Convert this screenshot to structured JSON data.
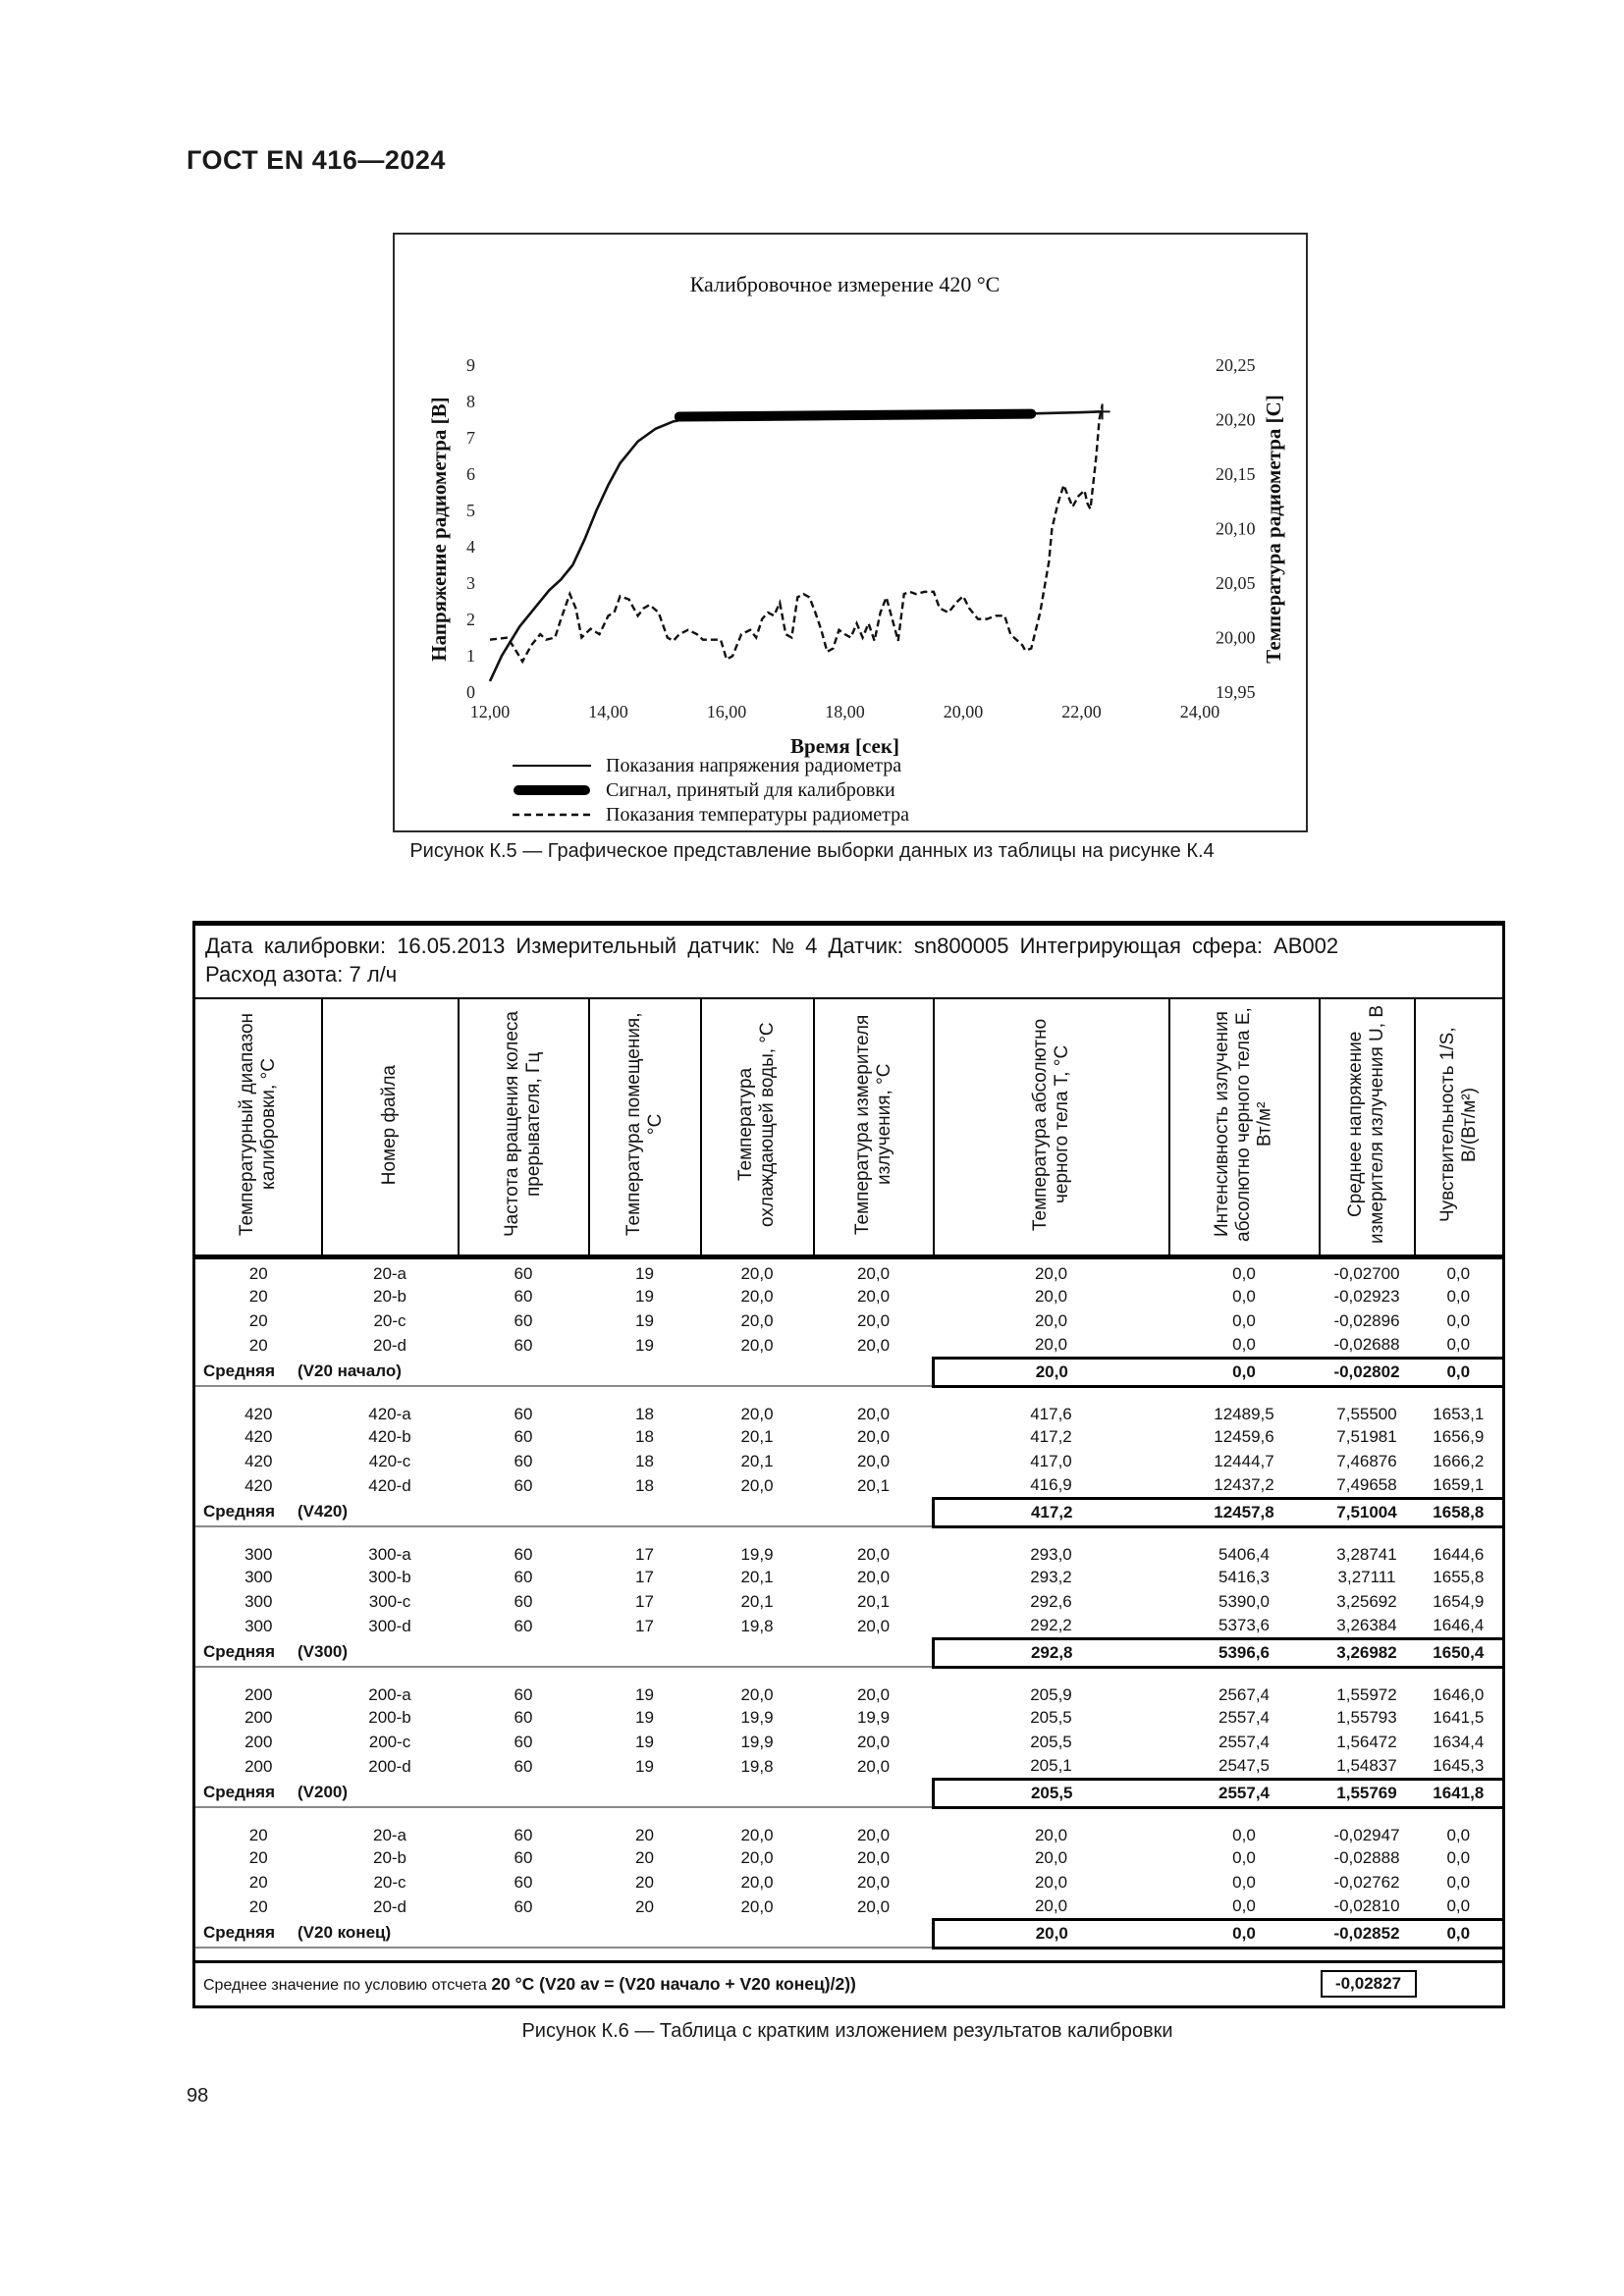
{
  "page": {
    "header_title": "ГОСТ EN 416—2024",
    "page_number": "98"
  },
  "figure_k5": {
    "caption": "Рисунок К.5  — Графическое представление выборки данных из таблицы на рисунке К.4"
  },
  "chart_data": {
    "type": "line",
    "title": "Калибровочное измерение 420 °С",
    "xlabel": "Время [сек]",
    "ylabel_left": "Напряжение радиометра [В]",
    "ylabel_right": "Температура радиометра [C]",
    "xlim": [
      12,
      24
    ],
    "ylim_left": [
      0,
      9
    ],
    "ylim_right": [
      19.95,
      20.25
    ],
    "xticks": [
      "12,00",
      "14,00",
      "16,00",
      "18,00",
      "20,00",
      "22,00",
      "24,00"
    ],
    "yticks_left": [
      "0",
      "1",
      "2",
      "3",
      "4",
      "5",
      "6",
      "7",
      "8",
      "9"
    ],
    "yticks_right": [
      "19,95",
      "20,00",
      "20,05",
      "20,10",
      "20,15",
      "20,20",
      "20,25"
    ],
    "grid": false,
    "legend_position": "bottom-left",
    "legend": [
      {
        "name": "Показания напряжения радиометра",
        "style": "solid-thin"
      },
      {
        "name": "Сигнал, принятый для калибровки",
        "style": "solid-thick"
      },
      {
        "name": "Показания температуры радиометра",
        "style": "dashed"
      }
    ],
    "series": [
      {
        "name": "voltage",
        "axis": "left",
        "x": [
          12.0,
          12.2,
          12.5,
          12.8,
          13.0,
          13.2,
          13.4,
          13.6,
          13.8,
          14.0,
          14.2,
          14.5,
          14.8,
          15.1,
          15.4,
          16.0,
          17.0,
          18.0,
          19.0,
          20.0,
          21.0,
          21.5,
          22.0,
          22.35
        ],
        "y": [
          0.3,
          1.0,
          1.8,
          2.4,
          2.8,
          3.1,
          3.5,
          4.2,
          5.0,
          5.7,
          6.3,
          6.9,
          7.25,
          7.45,
          7.55,
          7.6,
          7.62,
          7.63,
          7.64,
          7.65,
          7.66,
          7.68,
          7.7,
          7.72
        ]
      },
      {
        "name": "calibration_signal",
        "axis": "left",
        "x": [
          15.2,
          21.15
        ],
        "y": [
          7.58,
          7.66
        ]
      },
      {
        "name": "temperature",
        "axis": "right",
        "x": [
          12.0,
          12.3,
          12.45,
          12.55,
          12.7,
          12.85,
          12.95,
          13.1,
          13.2,
          13.35,
          13.45,
          13.55,
          13.7,
          13.85,
          14.0,
          14.1,
          14.2,
          14.35,
          14.5,
          14.6,
          14.7,
          14.85,
          15.0,
          15.1,
          15.2,
          15.35,
          15.5,
          15.6,
          15.75,
          15.9,
          16.0,
          16.1,
          16.25,
          16.4,
          16.5,
          16.6,
          16.7,
          16.8,
          16.9,
          17.0,
          17.1,
          17.2,
          17.3,
          17.4,
          17.5,
          17.6,
          17.7,
          17.8,
          17.9,
          18.0,
          18.1,
          18.2,
          18.3,
          18.4,
          18.5,
          18.6,
          18.7,
          18.8,
          18.9,
          19.0,
          19.1,
          19.2,
          19.35,
          19.5,
          19.6,
          19.75,
          19.9,
          20.0,
          20.1,
          20.25,
          20.4,
          20.55,
          20.7,
          20.8,
          20.9,
          21.0,
          21.05,
          21.15,
          21.3,
          21.45,
          21.5,
          21.6,
          21.7,
          21.75,
          21.85,
          21.95,
          22.05,
          22.1,
          22.15,
          22.25,
          22.3,
          22.35
        ],
        "y": [
          19.998,
          20.0,
          19.987,
          19.978,
          19.993,
          20.003,
          19.998,
          20.0,
          20.017,
          20.04,
          20.027,
          20.0,
          20.008,
          20.003,
          20.02,
          20.023,
          20.038,
          20.035,
          20.02,
          20.027,
          20.03,
          20.023,
          20.0,
          19.997,
          20.003,
          20.007,
          20.003,
          19.998,
          19.998,
          19.998,
          19.98,
          19.983,
          20.003,
          20.007,
          20.0,
          20.017,
          20.023,
          20.02,
          20.032,
          20.003,
          20.0,
          20.037,
          20.04,
          20.037,
          20.023,
          20.007,
          19.987,
          19.99,
          20.007,
          20.003,
          20.0,
          20.013,
          20.0,
          20.013,
          19.997,
          20.023,
          20.037,
          20.017,
          19.997,
          20.04,
          20.042,
          20.04,
          20.042,
          20.042,
          20.027,
          20.023,
          20.033,
          20.038,
          20.027,
          20.017,
          20.017,
          20.02,
          20.02,
          20.003,
          19.998,
          19.993,
          19.988,
          19.99,
          20.023,
          20.07,
          20.1,
          20.123,
          20.14,
          20.133,
          20.12,
          20.13,
          20.135,
          20.123,
          20.118,
          20.167,
          20.2,
          20.213
        ]
      }
    ],
    "end_marker": {
      "x": 22.35,
      "y": 7.72
    }
  },
  "table_k6": {
    "info_line1": "Дата калибровки: 16.05.2013 Измерительный датчик: № 4 Датчик: sn800005 Интегрирующая сфера: АВ002",
    "info_line2": "Расход азота: 7 л/ч",
    "columns": [
      "Температурный диапазон калибровки, °С",
      "Номер файла",
      "Частота вращения колеса прерывателя, Гц",
      "Температура помещения, °С",
      "Температура охлаждающей воды, °С",
      "Температура измерителя излучения, °С",
      "Температура абсолютно черного тела Т, °С",
      "Интенсивность излучения абсолютно черного тела Е, Вт/м²",
      "Среднее напряжение измерителя излучения U, В",
      "Чувствительность 1/S, В/(Вт/м²)"
    ],
    "groups": [
      {
        "rows": [
          [
            "20",
            "20-a",
            "60",
            "19",
            "20,0",
            "20,0",
            "20,0",
            "0,0",
            "-0,02700",
            "0,0"
          ],
          [
            "20",
            "20-b",
            "60",
            "19",
            "20,0",
            "20,0",
            "20,0",
            "0,0",
            "-0,02923",
            "0,0"
          ],
          [
            "20",
            "20-c",
            "60",
            "19",
            "20,0",
            "20,0",
            "20,0",
            "0,0",
            "-0,02896",
            "0,0"
          ],
          [
            "20",
            "20-d",
            "60",
            "19",
            "20,0",
            "20,0",
            "20,0",
            "0,0",
            "-0,02688",
            "0,0"
          ]
        ],
        "average": {
          "label": "Средняя",
          "sublabel": "(V20 начало)",
          "values": [
            "20,0",
            "0,0",
            "-0,02802",
            "0,0"
          ]
        }
      },
      {
        "rows": [
          [
            "420",
            "420-a",
            "60",
            "18",
            "20,0",
            "20,0",
            "417,6",
            "12489,5",
            "7,55500",
            "1653,1"
          ],
          [
            "420",
            "420-b",
            "60",
            "18",
            "20,1",
            "20,0",
            "417,2",
            "12459,6",
            "7,51981",
            "1656,9"
          ],
          [
            "420",
            "420-c",
            "60",
            "18",
            "20,1",
            "20,0",
            "417,0",
            "12444,7",
            "7,46876",
            "1666,2"
          ],
          [
            "420",
            "420-d",
            "60",
            "18",
            "20,0",
            "20,1",
            "416,9",
            "12437,2",
            "7,49658",
            "1659,1"
          ]
        ],
        "average": {
          "label": "Средняя",
          "sublabel": "(V420)",
          "values": [
            "417,2",
            "12457,8",
            "7,51004",
            "1658,8"
          ]
        }
      },
      {
        "rows": [
          [
            "300",
            "300-a",
            "60",
            "17",
            "19,9",
            "20,0",
            "293,0",
            "5406,4",
            "3,28741",
            "1644,6"
          ],
          [
            "300",
            "300-b",
            "60",
            "17",
            "20,1",
            "20,0",
            "293,2",
            "5416,3",
            "3,27111",
            "1655,8"
          ],
          [
            "300",
            "300-c",
            "60",
            "17",
            "20,1",
            "20,1",
            "292,6",
            "5390,0",
            "3,25692",
            "1654,9"
          ],
          [
            "300",
            "300-d",
            "60",
            "17",
            "19,8",
            "20,0",
            "292,2",
            "5373,6",
            "3,26384",
            "1646,4"
          ]
        ],
        "average": {
          "label": "Средняя",
          "sublabel": "(V300)",
          "values": [
            "292,8",
            "5396,6",
            "3,26982",
            "1650,4"
          ]
        }
      },
      {
        "rows": [
          [
            "200",
            "200-a",
            "60",
            "19",
            "20,0",
            "20,0",
            "205,9",
            "2567,4",
            "1,55972",
            "1646,0"
          ],
          [
            "200",
            "200-b",
            "60",
            "19",
            "19,9",
            "19,9",
            "205,5",
            "2557,4",
            "1,55793",
            "1641,5"
          ],
          [
            "200",
            "200-c",
            "60",
            "19",
            "19,9",
            "20,0",
            "205,5",
            "2557,4",
            "1,56472",
            "1634,4"
          ],
          [
            "200",
            "200-d",
            "60",
            "19",
            "19,8",
            "20,0",
            "205,1",
            "2547,5",
            "1,54837",
            "1645,3"
          ]
        ],
        "average": {
          "label": "Средняя",
          "sublabel": "(V200)",
          "values": [
            "205,5",
            "2557,4",
            "1,55769",
            "1641,8"
          ]
        }
      },
      {
        "rows": [
          [
            "20",
            "20-a",
            "60",
            "20",
            "20,0",
            "20,0",
            "20,0",
            "0,0",
            "-0,02947",
            "0,0"
          ],
          [
            "20",
            "20-b",
            "60",
            "20",
            "20,0",
            "20,0",
            "20,0",
            "0,0",
            "-0,02888",
            "0,0"
          ],
          [
            "20",
            "20-c",
            "60",
            "20",
            "20,0",
            "20,0",
            "20,0",
            "0,0",
            "-0,02762",
            "0,0"
          ],
          [
            "20",
            "20-d",
            "60",
            "20",
            "20,0",
            "20,0",
            "20,0",
            "0,0",
            "-0,02810",
            "0,0"
          ]
        ],
        "average": {
          "label": "Средняя",
          "sublabel": "(V20 конец)",
          "values": [
            "20,0",
            "0,0",
            "-0,02852",
            "0,0"
          ]
        }
      }
    ],
    "summary": {
      "label": "Среднее значение по условию отсчета",
      "formula": "20 °С  (V20 av = (V20 начало + V20 конец)/2))",
      "value": "-0,02827"
    },
    "caption": "Рисунок К.6  — Таблица с кратким изложением результатов калибровки"
  }
}
